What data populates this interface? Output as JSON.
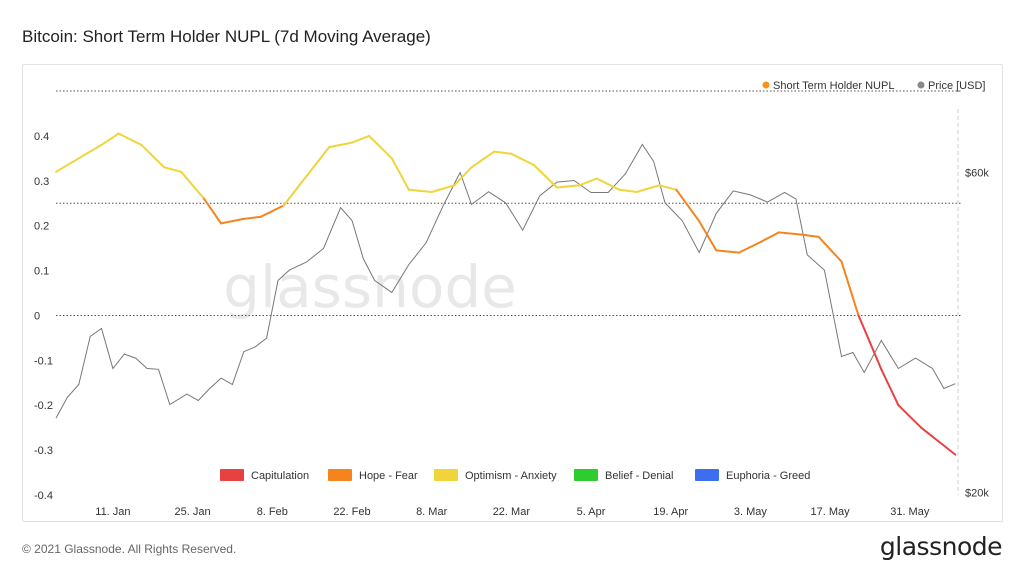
{
  "header": {
    "title": "Bitcoin: Short Term Holder NUPL (7d Moving Average)"
  },
  "footer": {
    "copyright": "© 2021 Glassnode. All Rights Reserved.",
    "brand": "glassnode"
  },
  "watermark": "glassnode",
  "chart_data": {
    "type": "line",
    "x_ticks": [
      "11. Jan",
      "25. Jan",
      "8. Feb",
      "22. Feb",
      "8. Mar",
      "22. Mar",
      "5. Apr",
      "19. Apr",
      "3. May",
      "17. May",
      "31. May"
    ],
    "ylim_left": [
      -0.4,
      0.5
    ],
    "y_ticks_left": [
      "0.4",
      "0.3",
      "0.2",
      "0.1",
      "0",
      "-0.1",
      "-0.2",
      "-0.3",
      "-0.4"
    ],
    "y_ticks_right": [
      "$60k",
      "$20k"
    ],
    "legend_top": [
      {
        "name": "Short Term Holder NUPL",
        "color": "#f7931a"
      },
      {
        "name": "Price [USD]",
        "color": "#888888"
      }
    ],
    "zone_legend": [
      {
        "name": "Capitulation",
        "color": "#e84142"
      },
      {
        "name": "Hope - Fear",
        "color": "#f5841f"
      },
      {
        "name": "Optimism - Anxiety",
        "color": "#f0d43c"
      },
      {
        "name": "Belief - Denial",
        "color": "#2ecc2e"
      },
      {
        "name": "Euphoria - Greed",
        "color": "#3d6ef0"
      }
    ],
    "zone_lines": [
      0.5,
      0.25,
      0
    ],
    "series": [
      {
        "name": "Short Term Holder NUPL",
        "dates": [
          "2021-01-01",
          "2021-01-05",
          "2021-01-09",
          "2021-01-12",
          "2021-01-16",
          "2021-01-20",
          "2021-01-23",
          "2021-01-27",
          "2021-01-30",
          "2021-02-03",
          "2021-02-06",
          "2021-02-10",
          "2021-02-14",
          "2021-02-18",
          "2021-02-22",
          "2021-02-25",
          "2021-03-01",
          "2021-03-04",
          "2021-03-08",
          "2021-03-12",
          "2021-03-15",
          "2021-03-19",
          "2021-03-22",
          "2021-03-26",
          "2021-03-30",
          "2021-04-03",
          "2021-04-06",
          "2021-04-10",
          "2021-04-13",
          "2021-04-17",
          "2021-04-20",
          "2021-04-24",
          "2021-04-27",
          "2021-05-01",
          "2021-05-05",
          "2021-05-08",
          "2021-05-12",
          "2021-05-15",
          "2021-05-19",
          "2021-05-22",
          "2021-05-26",
          "2021-05-29",
          "2021-06-02",
          "2021-06-05",
          "2021-06-08"
        ],
        "values": [
          0.32,
          0.35,
          0.38,
          0.405,
          0.38,
          0.33,
          0.32,
          0.26,
          0.205,
          0.215,
          0.22,
          0.245,
          0.31,
          0.375,
          0.385,
          0.4,
          0.35,
          0.28,
          0.275,
          0.29,
          0.33,
          0.365,
          0.36,
          0.335,
          0.285,
          0.29,
          0.305,
          0.28,
          0.275,
          0.29,
          0.28,
          0.21,
          0.145,
          0.14,
          0.165,
          0.185,
          0.18,
          0.175,
          0.12,
          0.0,
          -0.12,
          -0.2,
          -0.25,
          -0.28,
          -0.31
        ]
      },
      {
        "name": "Price [USD]",
        "dates": [
          "2021-01-01",
          "2021-01-03",
          "2021-01-05",
          "2021-01-07",
          "2021-01-09",
          "2021-01-11",
          "2021-01-13",
          "2021-01-15",
          "2021-01-17",
          "2021-01-19",
          "2021-01-21",
          "2021-01-24",
          "2021-01-26",
          "2021-01-28",
          "2021-01-30",
          "2021-02-01",
          "2021-02-03",
          "2021-02-05",
          "2021-02-07",
          "2021-02-09",
          "2021-02-11",
          "2021-02-14",
          "2021-02-17",
          "2021-02-20",
          "2021-02-22",
          "2021-02-24",
          "2021-02-26",
          "2021-03-01",
          "2021-03-04",
          "2021-03-07",
          "2021-03-10",
          "2021-03-13",
          "2021-03-15",
          "2021-03-18",
          "2021-03-21",
          "2021-03-24",
          "2021-03-27",
          "2021-03-30",
          "2021-04-02",
          "2021-04-05",
          "2021-04-08",
          "2021-04-11",
          "2021-04-14",
          "2021-04-16",
          "2021-04-18",
          "2021-04-21",
          "2021-04-24",
          "2021-04-27",
          "2021-04-30",
          "2021-05-03",
          "2021-05-06",
          "2021-05-09",
          "2021-05-11",
          "2021-05-13",
          "2021-05-16",
          "2021-05-19",
          "2021-05-21",
          "2021-05-23",
          "2021-05-26",
          "2021-05-29",
          "2021-06-01",
          "2021-06-04",
          "2021-06-06",
          "2021-06-08"
        ],
        "values": [
          29300,
          31900,
          33500,
          39500,
          40500,
          35500,
          37300,
          36800,
          35500,
          35400,
          31000,
          32300,
          31500,
          33000,
          34300,
          33500,
          37600,
          38200,
          39300,
          46500,
          47800,
          48800,
          50500,
          55600,
          54000,
          49200,
          46500,
          45000,
          48500,
          51200,
          55800,
          60000,
          56000,
          57600,
          56200,
          52800,
          57100,
          58800,
          59000,
          57500,
          57500,
          59800,
          63500,
          61400,
          56200,
          54000,
          50000,
          54900,
          57700,
          57200,
          56300,
          57500,
          56700,
          49700,
          47800,
          37000,
          37500,
          35000,
          39000,
          35500,
          36800,
          35500,
          33000,
          33600
        ]
      }
    ]
  }
}
